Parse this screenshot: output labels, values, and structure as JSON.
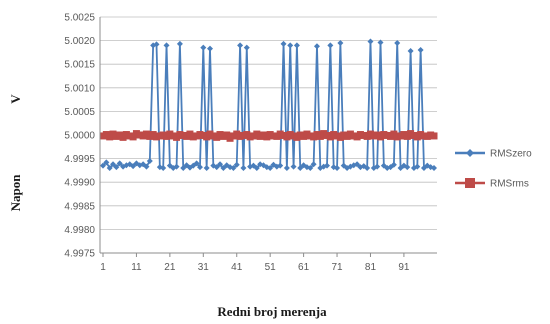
{
  "chart_data": {
    "type": "line",
    "title": "",
    "xlabel": "Redni broj merenja",
    "ylabel": "Napon",
    "yunit": "V",
    "ylim": [
      4.9975,
      5.0025
    ],
    "y_ticks": [
      "5.0025",
      "5.0020",
      "5.0015",
      "5.0010",
      "5.0005",
      "5.0000",
      "4.9995",
      "4.9990",
      "4.9985",
      "4.9980",
      "4.9975"
    ],
    "x_ticks": [
      "1",
      "11",
      "21",
      "31",
      "41",
      "51",
      "61",
      "71",
      "81",
      "91"
    ],
    "xlim": [
      1,
      100
    ],
    "grid": "horizontal",
    "legend_position": "right",
    "x": [
      1,
      2,
      3,
      4,
      5,
      6,
      7,
      8,
      9,
      10,
      11,
      12,
      13,
      14,
      15,
      16,
      17,
      18,
      19,
      20,
      21,
      22,
      23,
      24,
      25,
      26,
      27,
      28,
      29,
      30,
      31,
      32,
      33,
      34,
      35,
      36,
      37,
      38,
      39,
      40,
      41,
      42,
      43,
      44,
      45,
      46,
      47,
      48,
      49,
      50,
      51,
      52,
      53,
      54,
      55,
      56,
      57,
      58,
      59,
      60,
      61,
      62,
      63,
      64,
      65,
      66,
      67,
      68,
      69,
      70,
      71,
      72,
      73,
      74,
      75,
      76,
      77,
      78,
      79,
      80,
      81,
      82,
      83,
      84,
      85,
      86,
      87,
      88,
      89,
      90,
      91,
      92,
      93,
      94,
      95,
      96,
      97,
      98,
      99,
      100
    ],
    "series": [
      {
        "name": "RMSzero",
        "color": "#4a7ebb",
        "marker": "diamond",
        "values": [
          4.99935,
          4.99942,
          4.9993,
          4.99938,
          4.99932,
          4.9994,
          4.99933,
          4.99936,
          4.99938,
          4.99934,
          4.9994,
          4.99936,
          4.99938,
          4.99933,
          4.99945,
          5.0019,
          5.00192,
          4.99932,
          4.9993,
          5.0019,
          4.99935,
          4.9993,
          4.99933,
          5.00193,
          4.9993,
          4.99936,
          4.99931,
          4.99935,
          4.9994,
          4.99932,
          5.00185,
          4.9993,
          5.00183,
          4.99935,
          4.99932,
          4.99938,
          4.9993,
          4.99936,
          4.99932,
          4.9993,
          4.99937,
          5.0019,
          4.9993,
          5.00185,
          4.99933,
          4.99935,
          4.9993,
          4.99938,
          4.99936,
          4.99932,
          4.9993,
          4.99937,
          4.99933,
          4.99935,
          5.00193,
          4.9993,
          5.0019,
          4.99933,
          5.0019,
          4.9993,
          4.99936,
          4.99932,
          4.9993,
          4.99938,
          5.00188,
          4.9993,
          4.99933,
          4.99935,
          5.0019,
          4.99932,
          4.9993,
          5.00195,
          4.99935,
          4.9993,
          4.99933,
          4.99936,
          4.99938,
          4.99932,
          4.99934,
          4.9993,
          5.00198,
          4.9993,
          4.99933,
          5.00196,
          4.99935,
          4.9993,
          4.99932,
          4.99937,
          5.00195,
          4.9993,
          4.99935,
          4.99932,
          5.00178,
          4.9993,
          4.99933,
          5.0018,
          4.9993,
          4.99935,
          4.99932,
          4.9993
        ]
      },
      {
        "name": "RMSrms",
        "color": "#be4b48",
        "marker": "square",
        "values": [
          4.99998,
          5.00001,
          4.99996,
          5.00002,
          4.99997,
          5.0,
          4.99995,
          5.00001,
          4.99998,
          4.99996,
          5.00003,
          5.0,
          4.99998,
          5.00002,
          4.99997,
          5.00001,
          4.99996,
          4.99998,
          5.0,
          4.99997,
          5.00002,
          4.99998,
          4.99995,
          5.00001,
          4.99999,
          4.99997,
          5.00002,
          4.99996,
          4.99998,
          5.00001,
          4.99999,
          4.99996,
          5.00002,
          4.99998,
          4.99995,
          5.00001,
          4.99997,
          5.0,
          4.99993,
          4.99998,
          5.00002,
          4.99997,
          4.99999,
          5.00001,
          4.99996,
          4.99998,
          5.00002,
          4.99997,
          5.0,
          4.99996,
          5.00001,
          4.99998,
          4.99997,
          5.00002,
          4.99999,
          4.99996,
          5.00001,
          4.99998,
          4.99995,
          5.0,
          4.99997,
          5.00002,
          4.99998,
          4.99996,
          5.00001,
          4.99997,
          5.00003,
          4.99999,
          4.99996,
          5.00001,
          4.99998,
          4.99995,
          5.0,
          4.99997,
          5.00002,
          4.99998,
          4.99996,
          5.00001,
          4.99999,
          4.99997,
          5.00002,
          4.99998,
          5.0,
          4.99996,
          5.00001,
          4.99999,
          4.99997,
          5.00002,
          4.99996,
          4.99998,
          5.00001,
          4.99997,
          5.00003,
          4.99999,
          4.99996,
          5.00001,
          4.99998,
          4.99997,
          5.0,
          4.99998
        ]
      }
    ]
  }
}
